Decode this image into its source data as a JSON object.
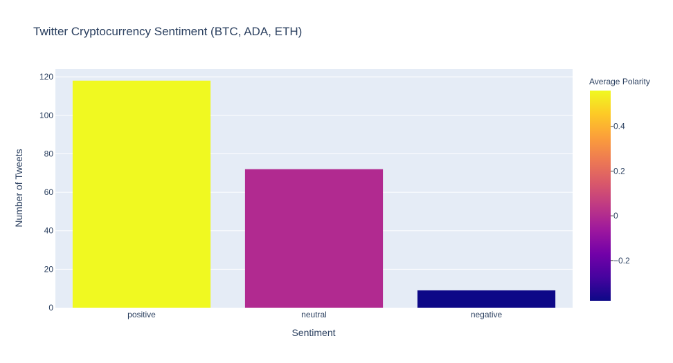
{
  "chart_data": {
    "type": "bar",
    "title": "Twitter Cryptocurrency Sentiment (BTC, ADA, ETH)",
    "xlabel": "Sentiment",
    "ylabel": "Number of Tweets",
    "categories": [
      "positive",
      "neutral",
      "negative"
    ],
    "values": [
      118,
      72,
      9
    ],
    "colors": [
      "#f0f921",
      "#b12a90",
      "#0d0887"
    ],
    "color_values": [
      0.56,
      0.0,
      -0.38
    ],
    "ylim": [
      0,
      124
    ],
    "yticks": [
      0,
      20,
      40,
      60,
      80,
      100,
      120
    ],
    "grid": true,
    "colorbar": {
      "title": "Average Polarity",
      "range": [
        -0.38,
        0.56
      ],
      "ticks": [
        0.4,
        0.2,
        0,
        -0.2
      ],
      "tick_labels": [
        "0.4",
        "0.2",
        "0",
        "−0.2"
      ],
      "colorscale": [
        "#0d0887",
        "#46039f",
        "#7201a8",
        "#9c179e",
        "#bd3786",
        "#d8576b",
        "#ed7953",
        "#fb9f3a",
        "#fdca26",
        "#f0f921"
      ]
    },
    "plot_background": "#e5ecf6"
  }
}
